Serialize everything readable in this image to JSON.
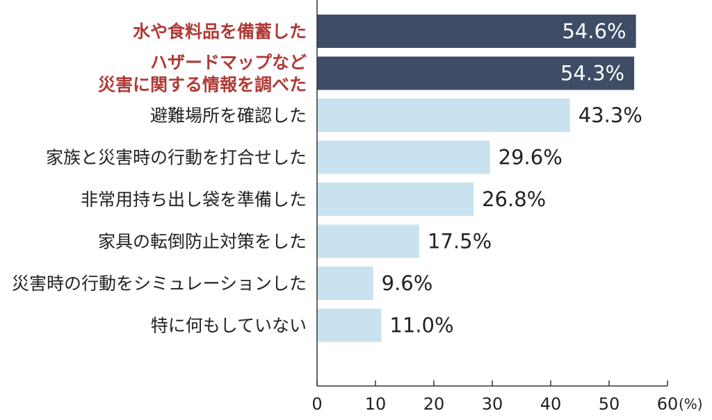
{
  "chart_data": {
    "type": "bar",
    "orientation": "horizontal",
    "categories": [
      [
        "水や食料品を備蓄した"
      ],
      [
        "ハザードマップなど",
        "災害に関する情報を調べた"
      ],
      [
        "避難場所を確認した"
      ],
      [
        "家族と災害時の行動を打合せした"
      ],
      [
        "非常用持ち出し袋を準備した"
      ],
      [
        "家具の転倒防止対策をした"
      ],
      [
        "災害時の行動をシミュレーションした"
      ],
      [
        "特に何もしていない"
      ]
    ],
    "values": [
      54.6,
      54.3,
      43.3,
      29.6,
      26.8,
      17.5,
      9.6,
      11.0
    ],
    "value_labels": [
      "54.6%",
      "54.3%",
      "43.3%",
      "29.6%",
      "26.8%",
      "17.5%",
      "9.6%",
      "11.0%"
    ],
    "highlighted": [
      true,
      true,
      false,
      false,
      false,
      false,
      false,
      false
    ],
    "x_ticks": [
      "0",
      "10",
      "20",
      "30",
      "40",
      "50",
      "60"
    ],
    "xlim": [
      0,
      60
    ],
    "x_unit": "(%)",
    "grid": false,
    "colors": {
      "highlight_bar": "#3e4c66",
      "normal_bar": "#c9e2ef",
      "highlight_text": "#b03a36",
      "axis": "#333333"
    }
  }
}
